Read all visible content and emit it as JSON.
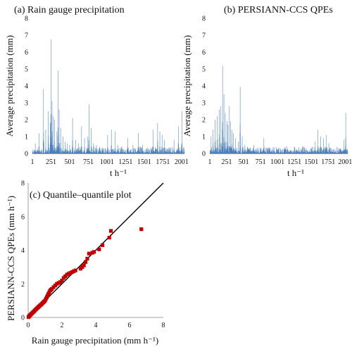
{
  "chart_data": [
    {
      "id": "a",
      "type": "bar",
      "title": "(a) Rain gauge precipitation",
      "xlabel": "t h⁻¹",
      "ylabel": "Average precipitation (mm)",
      "x_range": [
        1,
        2040
      ],
      "ylim": [
        0,
        8
      ],
      "x_ticks": [
        1,
        251,
        501,
        751,
        1001,
        1251,
        1501,
        1751,
        2001
      ],
      "x_tick_labels": [
        "1",
        "251",
        "501",
        "751",
        "1001",
        "1251",
        "1501",
        "1751",
        "2001"
      ],
      "y_ticks": [
        0,
        1,
        2,
        3,
        4,
        5,
        6,
        7,
        8
      ],
      "bar_color": "#4a7ebb",
      "grid": false,
      "peaks": [
        [
          40,
          0.6
        ],
        [
          90,
          1.2
        ],
        [
          150,
          3.8
        ],
        [
          180,
          1.4
        ],
        [
          215,
          2.5
        ],
        [
          240,
          1.8
        ],
        [
          251,
          6.75
        ],
        [
          265,
          3.1
        ],
        [
          280,
          2.2
        ],
        [
          300,
          2.0
        ],
        [
          330,
          1.3
        ],
        [
          345,
          4.9
        ],
        [
          360,
          2.6
        ],
        [
          380,
          1.5
        ],
        [
          410,
          1.0
        ],
        [
          440,
          0.7
        ],
        [
          470,
          0.6
        ],
        [
          500,
          0.5
        ],
        [
          540,
          2.1
        ],
        [
          580,
          0.8
        ],
        [
          620,
          0.6
        ],
        [
          660,
          1.6
        ],
        [
          700,
          0.9
        ],
        [
          745,
          1.0
        ],
        [
          760,
          2.9
        ],
        [
          790,
          1.5
        ],
        [
          820,
          0.6
        ],
        [
          860,
          0.5
        ],
        [
          900,
          0.4
        ],
        [
          950,
          0.3
        ],
        [
          1010,
          1.1
        ],
        [
          1060,
          1.4
        ],
        [
          1110,
          1.3
        ],
        [
          1150,
          0.5
        ],
        [
          1200,
          0.4
        ],
        [
          1280,
          0.9
        ],
        [
          1350,
          0.5
        ],
        [
          1420,
          1.2
        ],
        [
          1480,
          0.5
        ],
        [
          1540,
          0.3
        ],
        [
          1620,
          1.4
        ],
        [
          1680,
          1.8
        ],
        [
          1710,
          1.3
        ],
        [
          1740,
          1.1
        ],
        [
          1770,
          0.8
        ],
        [
          1830,
          0.3
        ],
        [
          1900,
          0.8
        ],
        [
          1960,
          1.6
        ],
        [
          2005,
          2.5
        ]
      ]
    },
    {
      "id": "b",
      "type": "bar",
      "title": "(b) PERSIANN-CCS QPEs",
      "xlabel": "t h⁻¹",
      "ylabel": "Average precipitation (mm)",
      "x_range": [
        1,
        2040
      ],
      "ylim": [
        0,
        8
      ],
      "x_ticks": [
        1,
        251,
        501,
        751,
        1001,
        1251,
        1501,
        1751,
        2001
      ],
      "x_tick_labels": [
        "1",
        "251",
        "501",
        "751",
        "1001",
        "1251",
        "1501",
        "1751",
        "2001"
      ],
      "y_ticks": [
        0,
        1,
        2,
        3,
        4,
        5,
        6,
        7,
        8
      ],
      "bar_color": "#4a7ebb",
      "grid": false,
      "peaks": [
        [
          20,
          1.0
        ],
        [
          50,
          1.4
        ],
        [
          80,
          2.0
        ],
        [
          110,
          2.2
        ],
        [
          140,
          2.6
        ],
        [
          165,
          2.8
        ],
        [
          190,
          5.2
        ],
        [
          210,
          3.5
        ],
        [
          230,
          2.4
        ],
        [
          255,
          1.9
        ],
        [
          270,
          1.7
        ],
        [
          290,
          2.8
        ],
        [
          310,
          1.9
        ],
        [
          330,
          1.4
        ],
        [
          350,
          1.2
        ],
        [
          380,
          0.9
        ],
        [
          420,
          0.7
        ],
        [
          450,
          3.95
        ],
        [
          480,
          1.0
        ],
        [
          520,
          0.5
        ],
        [
          560,
          0.4
        ],
        [
          600,
          0.3
        ],
        [
          650,
          0.5
        ],
        [
          700,
          0.3
        ],
        [
          760,
          0.3
        ],
        [
          800,
          0.9
        ],
        [
          850,
          0.3
        ],
        [
          920,
          0.25
        ],
        [
          1000,
          0.2
        ],
        [
          1100,
          0.25
        ],
        [
          1200,
          0.2
        ],
        [
          1300,
          0.2
        ],
        [
          1400,
          0.3
        ],
        [
          1500,
          0.3
        ],
        [
          1560,
          0.7
        ],
        [
          1600,
          1.4
        ],
        [
          1640,
          1.0
        ],
        [
          1680,
          0.9
        ],
        [
          1720,
          1.1
        ],
        [
          1760,
          0.6
        ],
        [
          1800,
          0.3
        ],
        [
          1900,
          0.3
        ],
        [
          1980,
          0.8
        ],
        [
          2010,
          2.4
        ]
      ]
    },
    {
      "id": "c",
      "type": "scatter",
      "title": "(c) Quantile–quantile plot",
      "xlabel": "Rain gauge precipitation (mm h⁻¹)",
      "ylabel": "PERSIANN-CCS QPEs (mm h⁻¹)",
      "xlim": [
        0,
        8
      ],
      "ylim": [
        0,
        8
      ],
      "x_ticks": [
        0,
        2,
        4,
        6,
        8
      ],
      "y_ticks": [
        0,
        2,
        4,
        6,
        8
      ],
      "marker_color": "#c00000",
      "line_color": "#000000",
      "reference_line": [
        [
          0,
          0
        ],
        [
          8,
          8
        ]
      ],
      "grid": false,
      "points": [
        [
          0.02,
          0.02
        ],
        [
          0.05,
          0.06
        ],
        [
          0.08,
          0.1
        ],
        [
          0.12,
          0.14
        ],
        [
          0.16,
          0.18
        ],
        [
          0.2,
          0.22
        ],
        [
          0.25,
          0.27
        ],
        [
          0.3,
          0.32
        ],
        [
          0.35,
          0.37
        ],
        [
          0.4,
          0.42
        ],
        [
          0.45,
          0.47
        ],
        [
          0.5,
          0.52
        ],
        [
          0.55,
          0.57
        ],
        [
          0.6,
          0.62
        ],
        [
          0.65,
          0.66
        ],
        [
          0.7,
          0.71
        ],
        [
          0.75,
          0.75
        ],
        [
          0.8,
          0.8
        ],
        [
          0.85,
          0.85
        ],
        [
          0.9,
          0.9
        ],
        [
          0.95,
          0.95
        ],
        [
          1.0,
          1.0
        ],
        [
          1.05,
          1.1
        ],
        [
          1.1,
          1.2
        ],
        [
          1.15,
          1.3
        ],
        [
          1.2,
          1.4
        ],
        [
          1.25,
          1.5
        ],
        [
          1.3,
          1.6
        ],
        [
          1.35,
          1.65
        ],
        [
          1.4,
          1.7
        ],
        [
          1.5,
          1.8
        ],
        [
          1.6,
          1.9
        ],
        [
          1.7,
          2.0
        ],
        [
          1.8,
          2.05
        ],
        [
          1.9,
          2.1
        ],
        [
          2.0,
          2.2
        ],
        [
          2.1,
          2.35
        ],
        [
          2.2,
          2.45
        ],
        [
          2.3,
          2.55
        ],
        [
          2.4,
          2.6
        ],
        [
          2.5,
          2.65
        ],
        [
          2.6,
          2.7
        ],
        [
          2.7,
          2.75
        ],
        [
          2.8,
          2.8
        ],
        [
          3.1,
          2.9
        ],
        [
          3.2,
          3.0
        ],
        [
          3.3,
          3.1
        ],
        [
          3.4,
          3.3
        ],
        [
          3.5,
          3.5
        ],
        [
          3.6,
          3.8
        ],
        [
          3.8,
          3.85
        ],
        [
          3.9,
          3.9
        ],
        [
          4.2,
          4.05
        ],
        [
          4.4,
          4.3
        ],
        [
          4.8,
          4.75
        ],
        [
          4.9,
          5.15
        ],
        [
          6.7,
          5.25
        ]
      ]
    }
  ]
}
